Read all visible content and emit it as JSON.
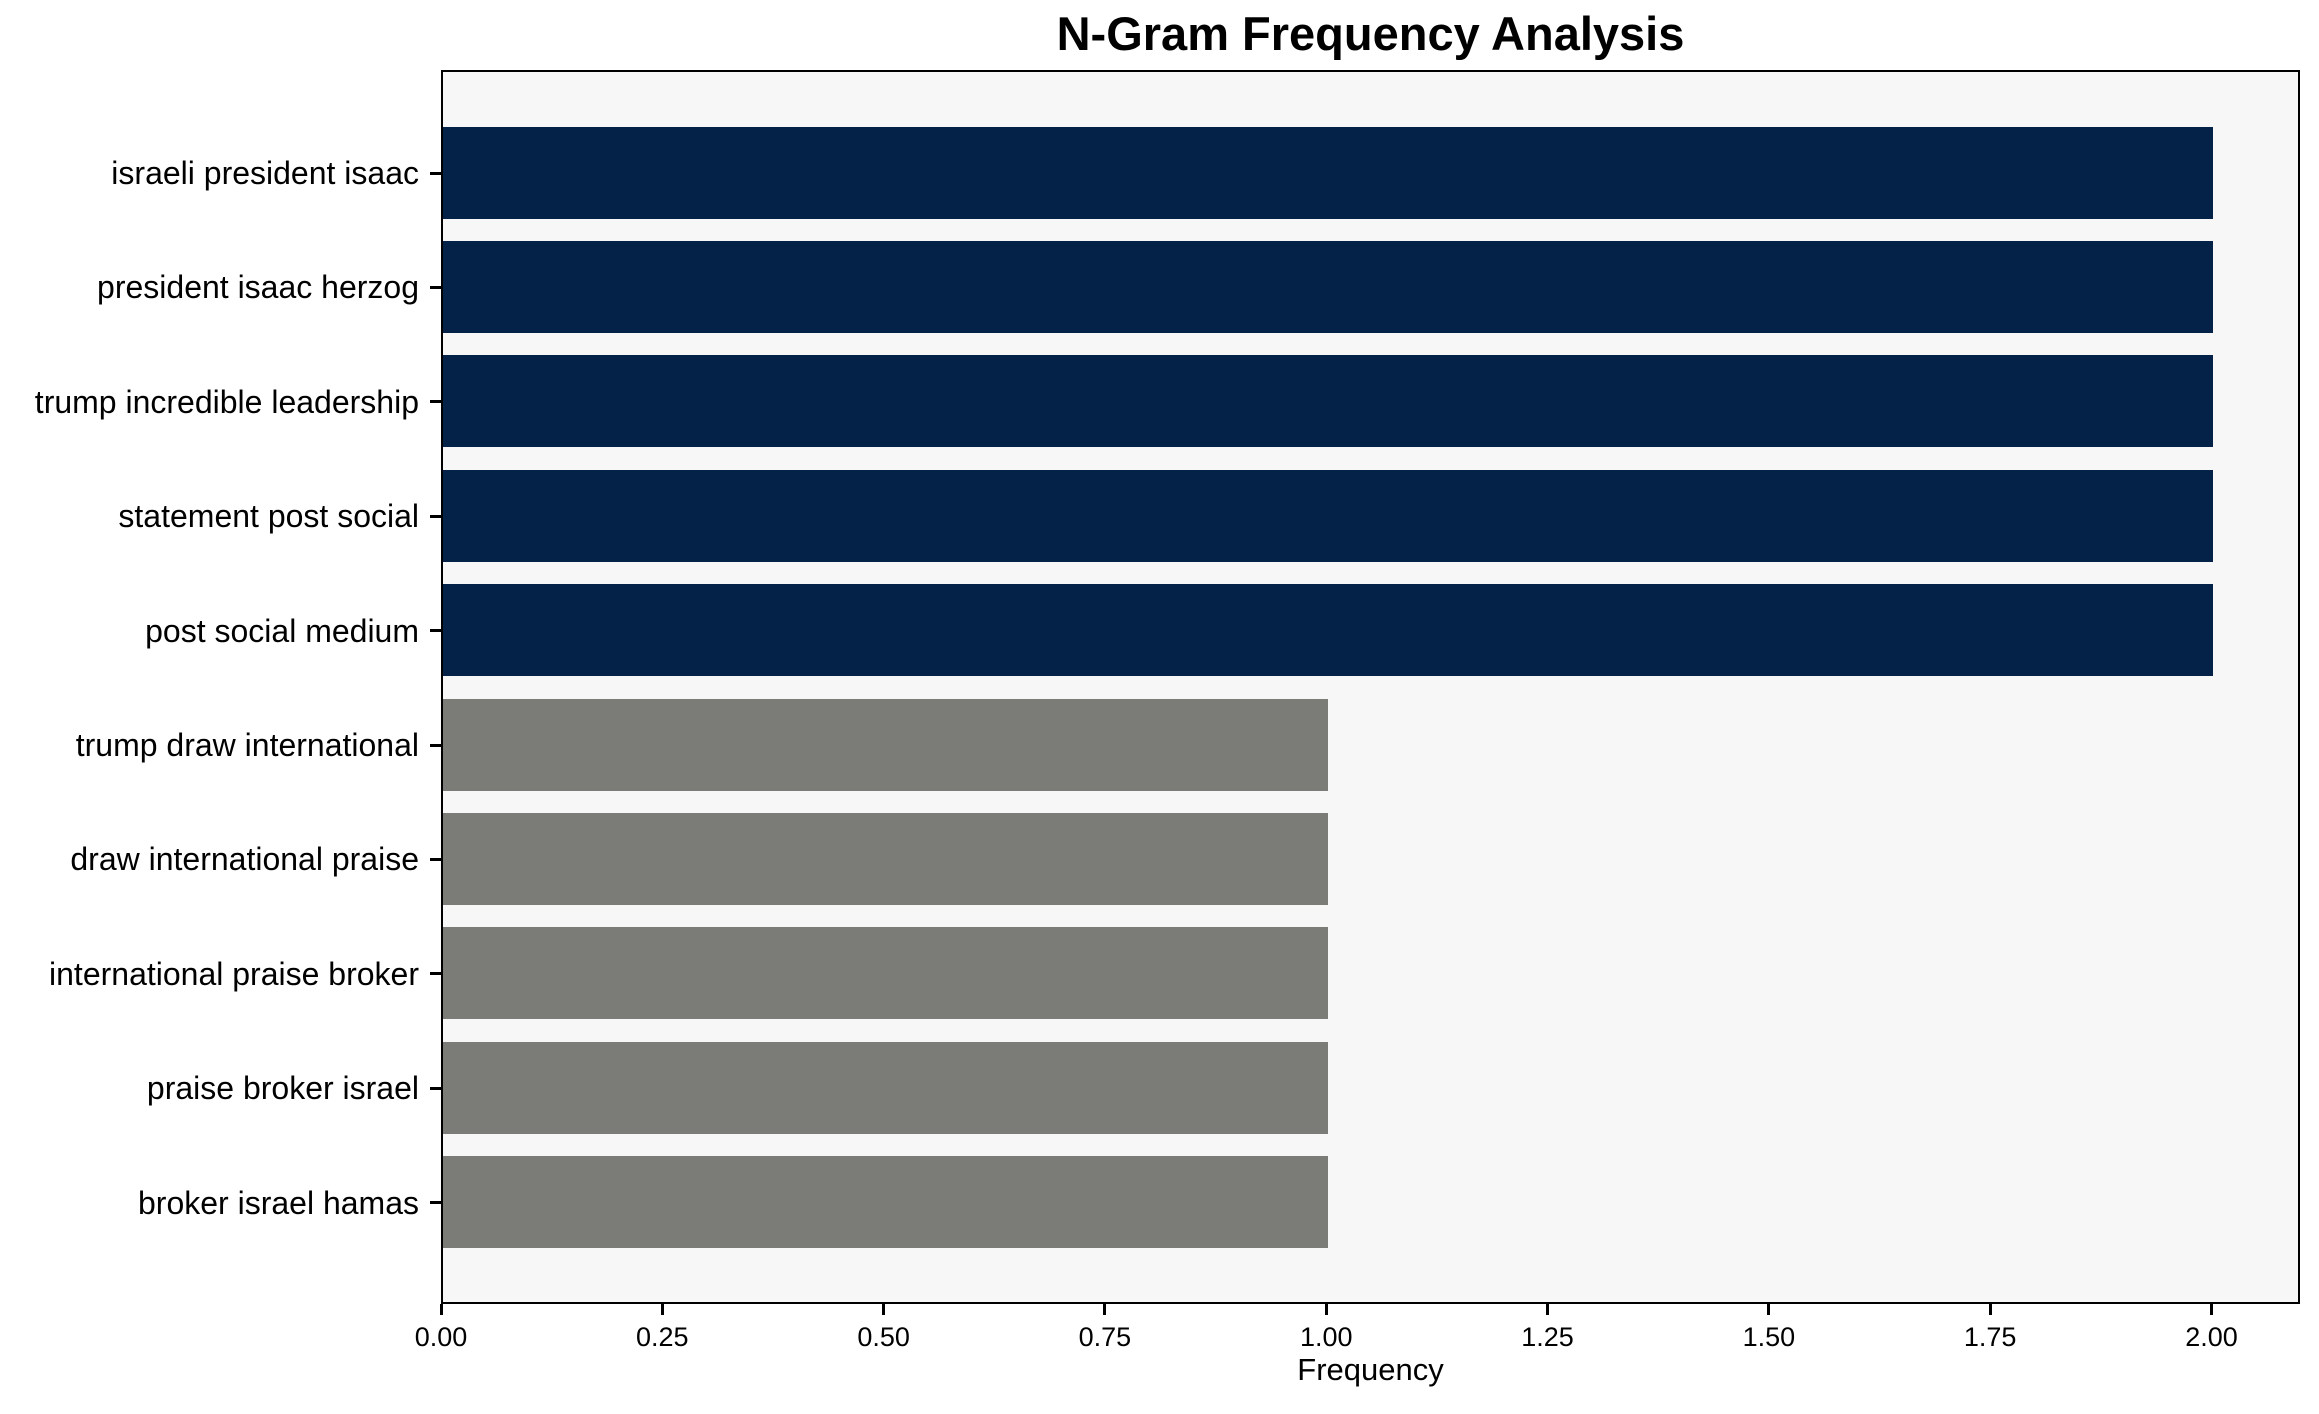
{
  "chart_data": {
    "type": "bar",
    "orientation": "horizontal",
    "title": "N-Gram Frequency Analysis",
    "xlabel": "Frequency",
    "ylabel": "",
    "categories": [
      "israeli president isaac",
      "president isaac herzog",
      "trump incredible leadership",
      "statement post social",
      "post social medium",
      "trump draw international",
      "draw international praise",
      "international praise broker",
      "praise broker israel",
      "broker israel hamas"
    ],
    "values": [
      2,
      2,
      2,
      2,
      2,
      1,
      1,
      1,
      1,
      1
    ],
    "bar_colors": [
      "#042248",
      "#042248",
      "#042248",
      "#042248",
      "#042248",
      "#7b7b78",
      "#7b7b78",
      "#7b7b78",
      "#7b7b78",
      "#7b7b78"
    ],
    "xlim": [
      0,
      2.1
    ],
    "xticks": [
      0,
      0.25,
      0.5,
      0.75,
      1.0,
      1.25,
      1.5,
      1.75,
      2.0
    ],
    "xtick_labels": [
      "0.00",
      "0.25",
      "0.50",
      "0.75",
      "1.00",
      "1.25",
      "1.50",
      "1.75",
      "2.00"
    ],
    "plot_background": "#f7f7f7",
    "figure_background": "#ffffff",
    "grid": false,
    "legend": null
  }
}
